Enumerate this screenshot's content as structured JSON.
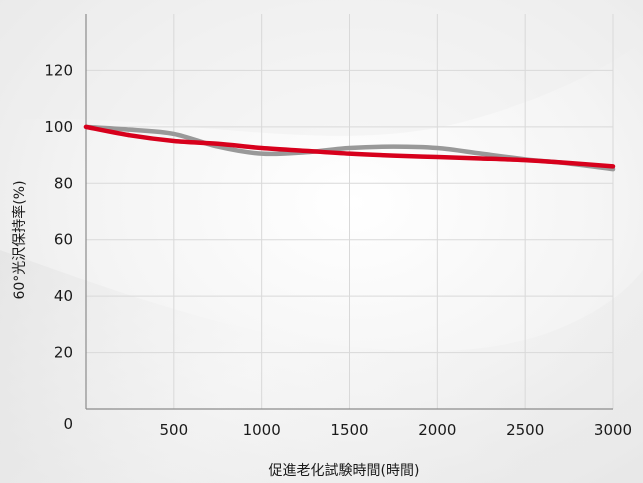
{
  "chart_data": {
    "type": "line",
    "xlabel": "促進老化試験時間(時間)",
    "ylabel": "60°光沢保持率(%)",
    "xlim": [
      0,
      3000
    ],
    "ylim": [
      0,
      140
    ],
    "x_ticks": [
      "500",
      "1000",
      "1500",
      "2000",
      "2500",
      "3000"
    ],
    "y_ticks": [
      "0",
      "20",
      "40",
      "60",
      "80",
      "100",
      "120"
    ],
    "grid": true,
    "series": [
      {
        "color": "#999999",
        "x": [
          0,
          250,
          500,
          750,
          1000,
          1250,
          1500,
          1750,
          2000,
          2250,
          2500,
          2750,
          3000
        ],
        "y": [
          100,
          99,
          97.5,
          93,
          90.5,
          91,
          92.5,
          93,
          92.5,
          90.5,
          88.5,
          87,
          85
        ]
      },
      {
        "color": "#d7001c",
        "x": [
          0,
          250,
          500,
          750,
          1000,
          1250,
          1500,
          1750,
          2000,
          2250,
          2500,
          2750,
          3000
        ],
        "y": [
          100,
          97,
          95,
          94,
          92.5,
          91.5,
          90.5,
          89.8,
          89.3,
          88.8,
          88.2,
          87.2,
          86
        ]
      }
    ]
  }
}
